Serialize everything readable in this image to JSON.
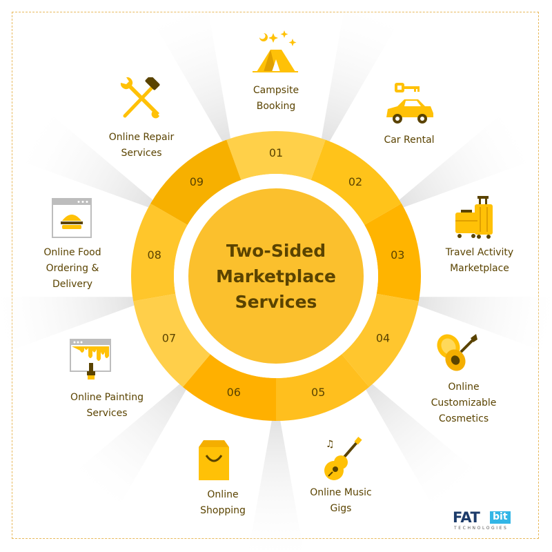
{
  "center": {
    "lines": [
      "Two-Sided",
      "Marketplace",
      "Services"
    ]
  },
  "segments": [
    {
      "num": "01",
      "label": [
        "Campsite",
        "Booking"
      ],
      "icon": "tent-icon"
    },
    {
      "num": "02",
      "label": [
        "Car Rental"
      ],
      "icon": "car-key-icon"
    },
    {
      "num": "03",
      "label": [
        "Travel Activity",
        "Marketplace"
      ],
      "icon": "luggage-icon"
    },
    {
      "num": "04",
      "label": [
        "Online",
        "Customizable",
        "Cosmetics"
      ],
      "icon": "cosmetics-icon"
    },
    {
      "num": "05",
      "label": [
        "Online Music",
        "Gigs"
      ],
      "icon": "guitar-icon"
    },
    {
      "num": "06",
      "label": [
        "Online",
        "Shopping"
      ],
      "icon": "shopping-bag-icon"
    },
    {
      "num": "07",
      "label": [
        "Online Painting",
        "Services"
      ],
      "icon": "paint-browser-icon"
    },
    {
      "num": "08",
      "label": [
        "Online Food",
        "Ordering &",
        "Delivery"
      ],
      "icon": "burger-browser-icon"
    },
    {
      "num": "09",
      "label": [
        "Online Repair",
        "Services"
      ],
      "icon": "hammer-wrench-icon"
    }
  ],
  "colors": {
    "ring": [
      "#ffd049",
      "#ffc31a",
      "#ffb400",
      "#ffc62e",
      "#ffbf1e",
      "#ffb000",
      "#ffcf4a",
      "#ffc62b",
      "#f7b000"
    ],
    "center": "#fbc02d",
    "text": "#5a4300",
    "accent": "#ffc107",
    "logo_blue": "#1c3b6a",
    "logo_cyan": "#33b6e6"
  },
  "logo": {
    "brand": "FAT",
    "brand_box": "bit",
    "sub": "TECHNOLOGIES"
  }
}
